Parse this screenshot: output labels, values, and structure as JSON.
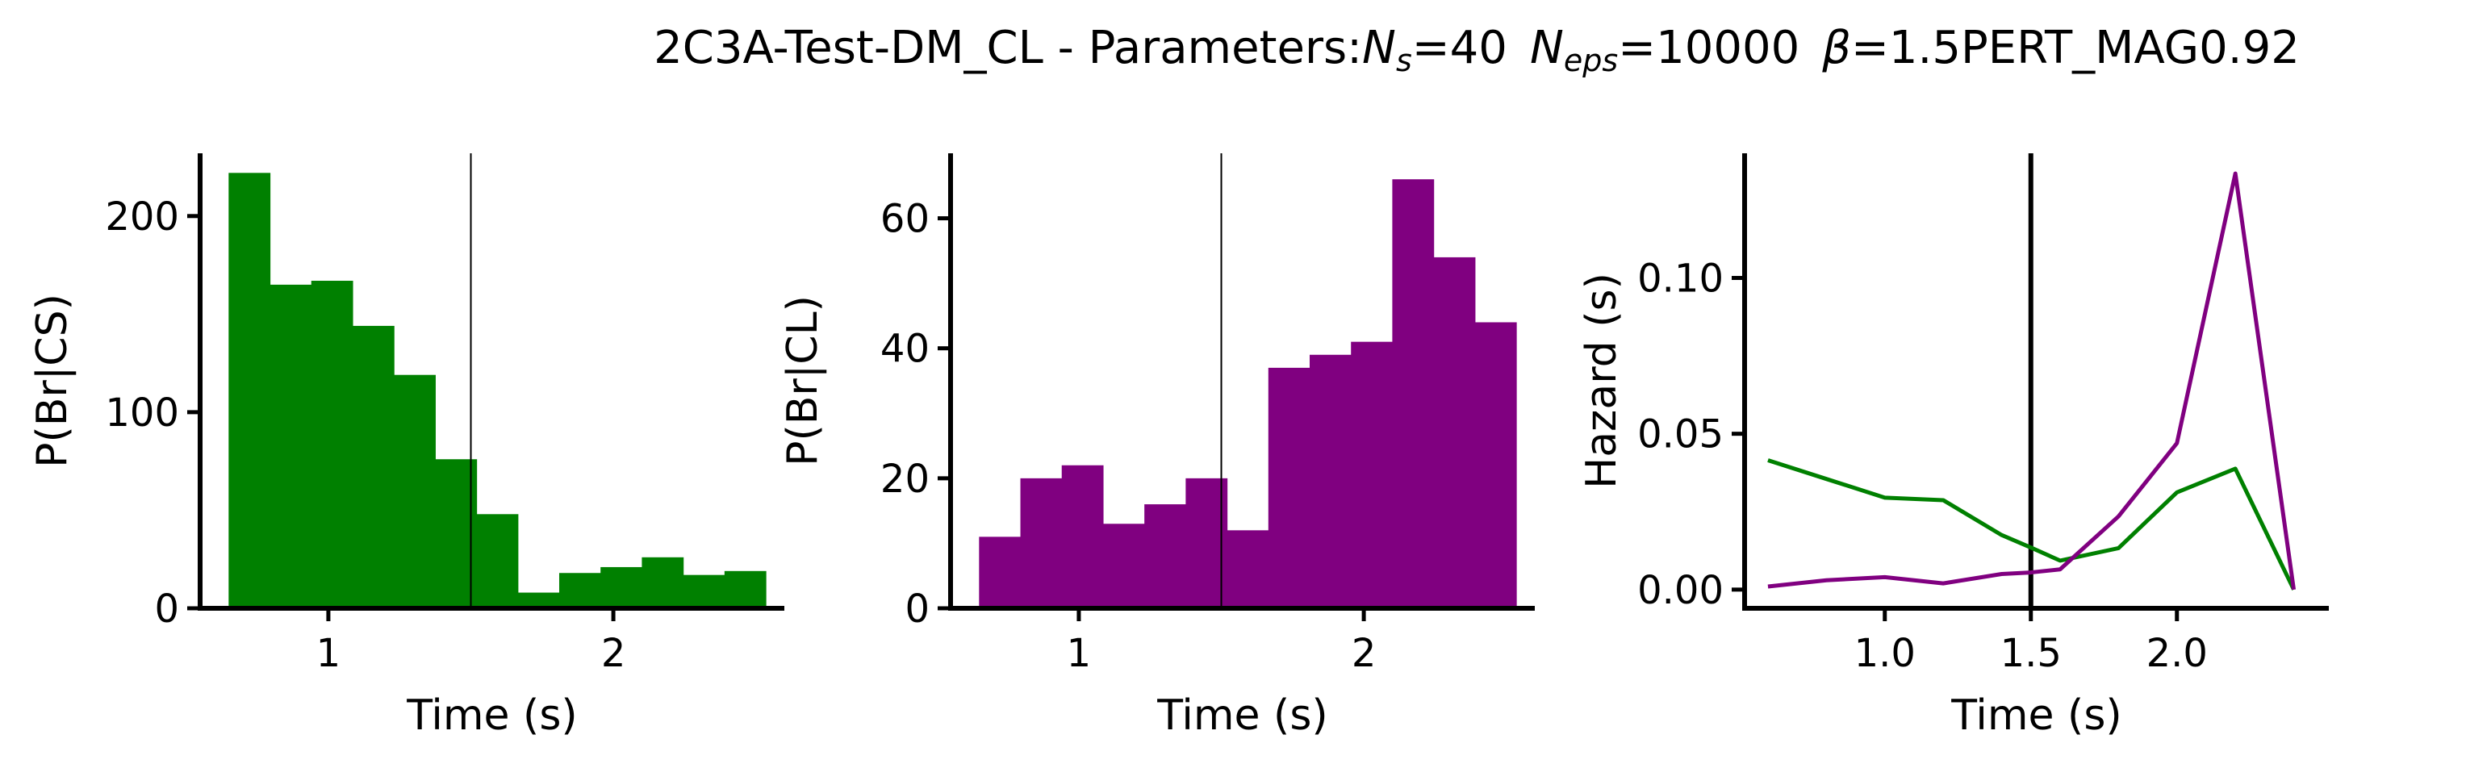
{
  "figure": {
    "title_prefix": "2C3A-Test-DM_CL - Parameters:",
    "title_param_1_symbol": "N",
    "title_param_1_sub": "s",
    "title_param_1_value": "=40",
    "title_param_2_symbol": "N",
    "title_param_2_sub": "eps",
    "title_param_2_value": "=10000",
    "title_param_3_symbol": "β",
    "title_param_3_value": "=1.5PERT_MAG0.92"
  },
  "colors": {
    "cs": "#008000",
    "cl": "#800080",
    "axis": "#000000"
  },
  "chart_data": [
    {
      "type": "bar",
      "ylabel": "P(Br|CS)",
      "xlabel": "Time (s)",
      "xlim": [
        0.55,
        2.6
      ],
      "ylim": [
        0,
        232
      ],
      "xticks": [
        1,
        2
      ],
      "xtick_labels": [
        "1",
        "2"
      ],
      "yticks": [
        0,
        100,
        200
      ],
      "ytick_labels": [
        "0",
        "100",
        "200"
      ],
      "vline": 1.5,
      "bin_width": 0.145,
      "bins_left": [
        0.65,
        0.795,
        0.94,
        1.085,
        1.23,
        1.375,
        1.52,
        1.665,
        1.81,
        1.955,
        2.1,
        2.245,
        2.39
      ],
      "values": [
        222,
        165,
        167,
        144,
        119,
        76,
        48,
        8,
        18,
        21,
        26,
        17,
        19
      ],
      "color": "#008000"
    },
    {
      "type": "bar",
      "ylabel": "P(Br|CL)",
      "xlabel": "Time (s)",
      "xlim": [
        0.55,
        2.6
      ],
      "ylim": [
        0,
        70
      ],
      "xticks": [
        1,
        2
      ],
      "xtick_labels": [
        "1",
        "2"
      ],
      "yticks": [
        0,
        20,
        40,
        60
      ],
      "ytick_labels": [
        "0",
        "20",
        "40",
        "60"
      ],
      "vline": 1.5,
      "bin_width": 0.145,
      "bins_left": [
        0.65,
        0.795,
        0.94,
        1.085,
        1.23,
        1.375,
        1.52,
        1.665,
        1.81,
        1.955,
        2.1,
        2.245,
        2.39
      ],
      "values": [
        11,
        20,
        22,
        13,
        16,
        20,
        12,
        37,
        39,
        41,
        66,
        54,
        44
      ],
      "color": "#800080"
    },
    {
      "type": "line",
      "ylabel": "Hazard (s)",
      "xlabel": "Time (s)",
      "xlim": [
        0.52,
        2.52
      ],
      "ylim": [
        -0.006,
        0.14
      ],
      "xticks": [
        1.0,
        1.5,
        2.0
      ],
      "xtick_labels": [
        "1.0",
        "1.5",
        "2.0"
      ],
      "yticks": [
        0.0,
        0.05,
        0.1
      ],
      "ytick_labels": [
        "0.00",
        "0.05",
        "0.10"
      ],
      "vline": 1.5,
      "series": [
        {
          "x": [
            0.6,
            0.8,
            1.0,
            1.2,
            1.4,
            1.5,
            1.6,
            1.8,
            2.0,
            2.2,
            2.4
          ],
          "values": [
            0.0415,
            0.0355,
            0.0295,
            0.0287,
            0.0175,
            0.0135,
            0.0093,
            0.0133,
            0.0312,
            0.0388,
            0.0
          ],
          "color": "#008000"
        },
        {
          "x": [
            0.6,
            0.8,
            1.0,
            1.2,
            1.4,
            1.5,
            1.6,
            1.8,
            2.0,
            2.2,
            2.4
          ],
          "values": [
            0.001,
            0.003,
            0.004,
            0.002,
            0.005,
            0.0055,
            0.0065,
            0.0235,
            0.047,
            0.1335,
            0.0
          ],
          "color": "#800080"
        }
      ]
    }
  ]
}
